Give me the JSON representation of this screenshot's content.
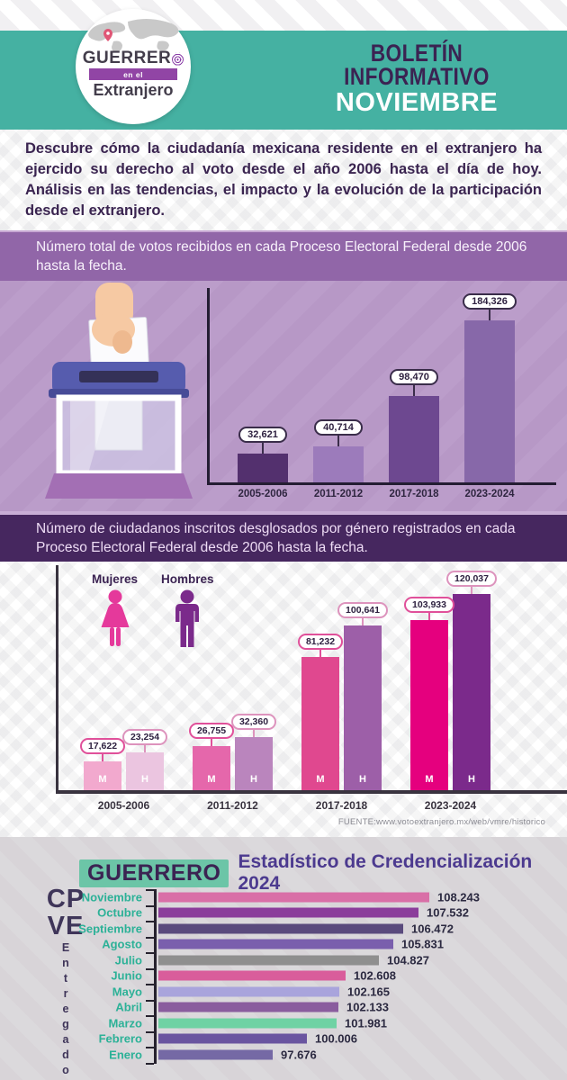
{
  "header": {
    "logo_line1": "GUERRERO",
    "logo_line2": "en el",
    "logo_line3": "Extranjero",
    "title_line1": "BOLETÍN",
    "title_line2": "INFORMATIVO",
    "title_line3": "NOVIEMBRE"
  },
  "intro": {
    "text": "Descubre cómo la ciudadanía mexicana residente en el extranjero ha ejercido su derecho al voto desde el año 2006 hasta el día de hoy. Análisis en las tendencias, el impacto y la evolución de la participación desde el extranjero."
  },
  "bottom": {
    "highlight": "GUERRERO",
    "title": "Estadístico de Credencialización 2024",
    "cp": "CP",
    "ve": "VE",
    "vertical_label": "Entregados"
  },
  "colors": {
    "teal_header": "#45b1a2",
    "dark_purple": "#3b2352",
    "banner_purple": "#9166a8",
    "votes_bg": "#bb9dca",
    "banner_dark": "#46275f",
    "month_teal": "#2cb197",
    "title_purple": "#4c3a8f",
    "highlight_teal": "#6cc5a7"
  },
  "chart_data": [
    {
      "type": "bar",
      "title": "Número total de votos recibidos en cada Proceso Electoral Federal desde 2006 hasta la fecha.",
      "categories": [
        "2005-2006",
        "2011-2012",
        "2017-2018",
        "2023-2024"
      ],
      "values": [
        32621,
        40714,
        98470,
        184326
      ],
      "labels": [
        "32,621",
        "40,714",
        "98,470",
        "184,326"
      ],
      "bar_colors": [
        "#53306e",
        "#9c7bbb",
        "#6d4890",
        "#8768a9"
      ],
      "pill_border": "#3a2d4a",
      "ylim": [
        0,
        184326
      ],
      "grid": false,
      "legend_position": "none"
    },
    {
      "type": "bar",
      "grouped": true,
      "title": "Número de ciudadanos inscritos desglosados por género registrados en cada Proceso Electoral Federal desde 2006 hasta la fecha.",
      "categories": [
        "2005-2006",
        "2011-2012",
        "2017-2018",
        "2023-2024"
      ],
      "series": [
        {
          "name": "Mujeres",
          "letter": "M",
          "values": [
            17622,
            26755,
            81232,
            103933
          ],
          "labels": [
            "17,622",
            "26,755",
            "81,232",
            "103,933"
          ],
          "colors": [
            "#f2a9ce",
            "#e567ab",
            "#e0488f",
            "#e5007e"
          ],
          "pill_border": "#e0509a"
        },
        {
          "name": "Hombres",
          "letter": "H",
          "values": [
            23254,
            32360,
            100641,
            120037
          ],
          "labels": [
            "23,254",
            "32,360",
            "100,641",
            "120,037"
          ],
          "colors": [
            "#ebc5e0",
            "#ba85bd",
            "#9d5fa8",
            "#7b2a8b"
          ],
          "pill_border": "#dd93bd"
        }
      ],
      "ylim": [
        0,
        120037
      ],
      "grid": false,
      "legend_position": "top-left",
      "source": "FUENTE:www.votoextranjero.mx/web/vmre/historico"
    },
    {
      "type": "bar",
      "orientation": "horizontal",
      "title": "GUERRERO Estadístico de Credencialización 2024",
      "ylabel": "CPVE Entregados",
      "categories": [
        "Noviembre",
        "Octubre",
        "Septiembre",
        "Agosto",
        "Julio",
        "Junio",
        "Mayo",
        "Abril",
        "Marzo",
        "Febrero",
        "Enero"
      ],
      "values": [
        108243,
        107532,
        106472,
        105831,
        104827,
        102608,
        102165,
        102133,
        101981,
        100006,
        97676
      ],
      "labels": [
        "108.243",
        "107.532",
        "106.472",
        "105.831",
        "104.827",
        "102.608",
        "102.165",
        "102.133",
        "101.981",
        "100.006",
        "97.676"
      ],
      "bar_colors": [
        "#d96fa7",
        "#8b3d9b",
        "#5a4a7d",
        "#7a5fad",
        "#8f8f8f",
        "#d95d9b",
        "#a9a4dc",
        "#8a5d9e",
        "#6fd2a4",
        "#6a55a0",
        "#7569a5"
      ],
      "xlim": [
        90000,
        110000
      ],
      "grid": false,
      "legend_position": "none"
    }
  ]
}
